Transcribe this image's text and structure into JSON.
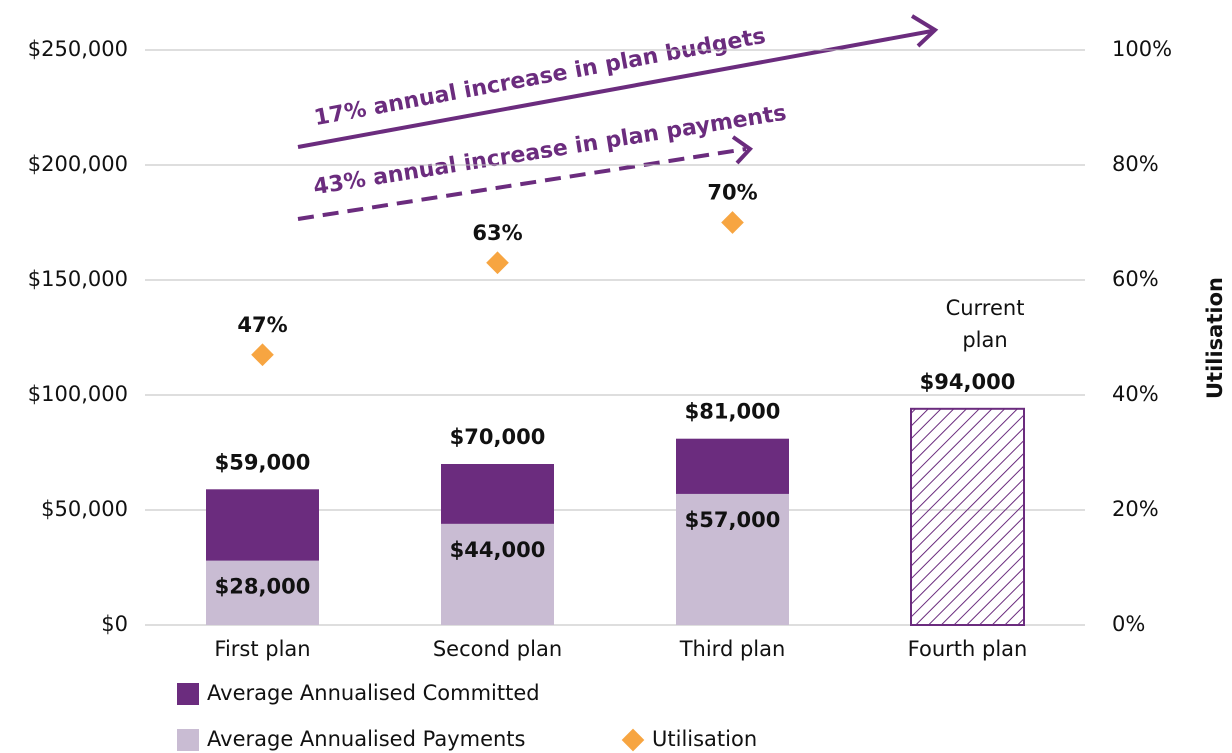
{
  "chart_data": {
    "type": "bar",
    "categories": [
      "First plan",
      "Second plan",
      "Third plan",
      "Fourth plan"
    ],
    "series": [
      {
        "name": "Average Annualised Committed",
        "color": "#6b2c7e",
        "values": [
          59000,
          70000,
          81000,
          94000
        ],
        "value_labels": [
          "$59,000",
          "$70,000",
          "$81,000",
          "$94,000"
        ],
        "hatch": [
          false,
          false,
          false,
          true
        ]
      },
      {
        "name": "Average Annualised Payments",
        "color": "#c9bcd3",
        "values": [
          28000,
          44000,
          57000,
          null
        ],
        "value_labels": [
          "$28,000",
          "$44,000",
          "$57,000",
          null
        ]
      },
      {
        "name": "Utilisation",
        "type": "scatter",
        "axis": "y2",
        "color": "#f7a541",
        "values": [
          47,
          63,
          70,
          null
        ],
        "value_labels": [
          "47%",
          "63%",
          "70%",
          null
        ]
      }
    ],
    "ylim": [
      0,
      250000
    ],
    "yticks": [
      {
        "value": 0,
        "label": "$0"
      },
      {
        "value": 50000,
        "label": "$50,000"
      },
      {
        "value": 100000,
        "label": "$100,000"
      },
      {
        "value": 150000,
        "label": "$150,000"
      },
      {
        "value": 200000,
        "label": "$200,000"
      },
      {
        "value": 250000,
        "label": "$250,000"
      }
    ],
    "y2lim": [
      0,
      100
    ],
    "y2ticks": [
      {
        "value": 0,
        "label": "0%"
      },
      {
        "value": 20,
        "label": "20%"
      },
      {
        "value": 40,
        "label": "40%"
      },
      {
        "value": 60,
        "label": "60%"
      },
      {
        "value": 80,
        "label": "80%"
      },
      {
        "value": 100,
        "label": "100%"
      }
    ],
    "y2label": "Utilisation",
    "annotations": [
      "17% annual increase in plan budgets",
      "43% annual increase in plan payments",
      "Current plan"
    ],
    "grid": true,
    "legend": "bottom-left"
  }
}
